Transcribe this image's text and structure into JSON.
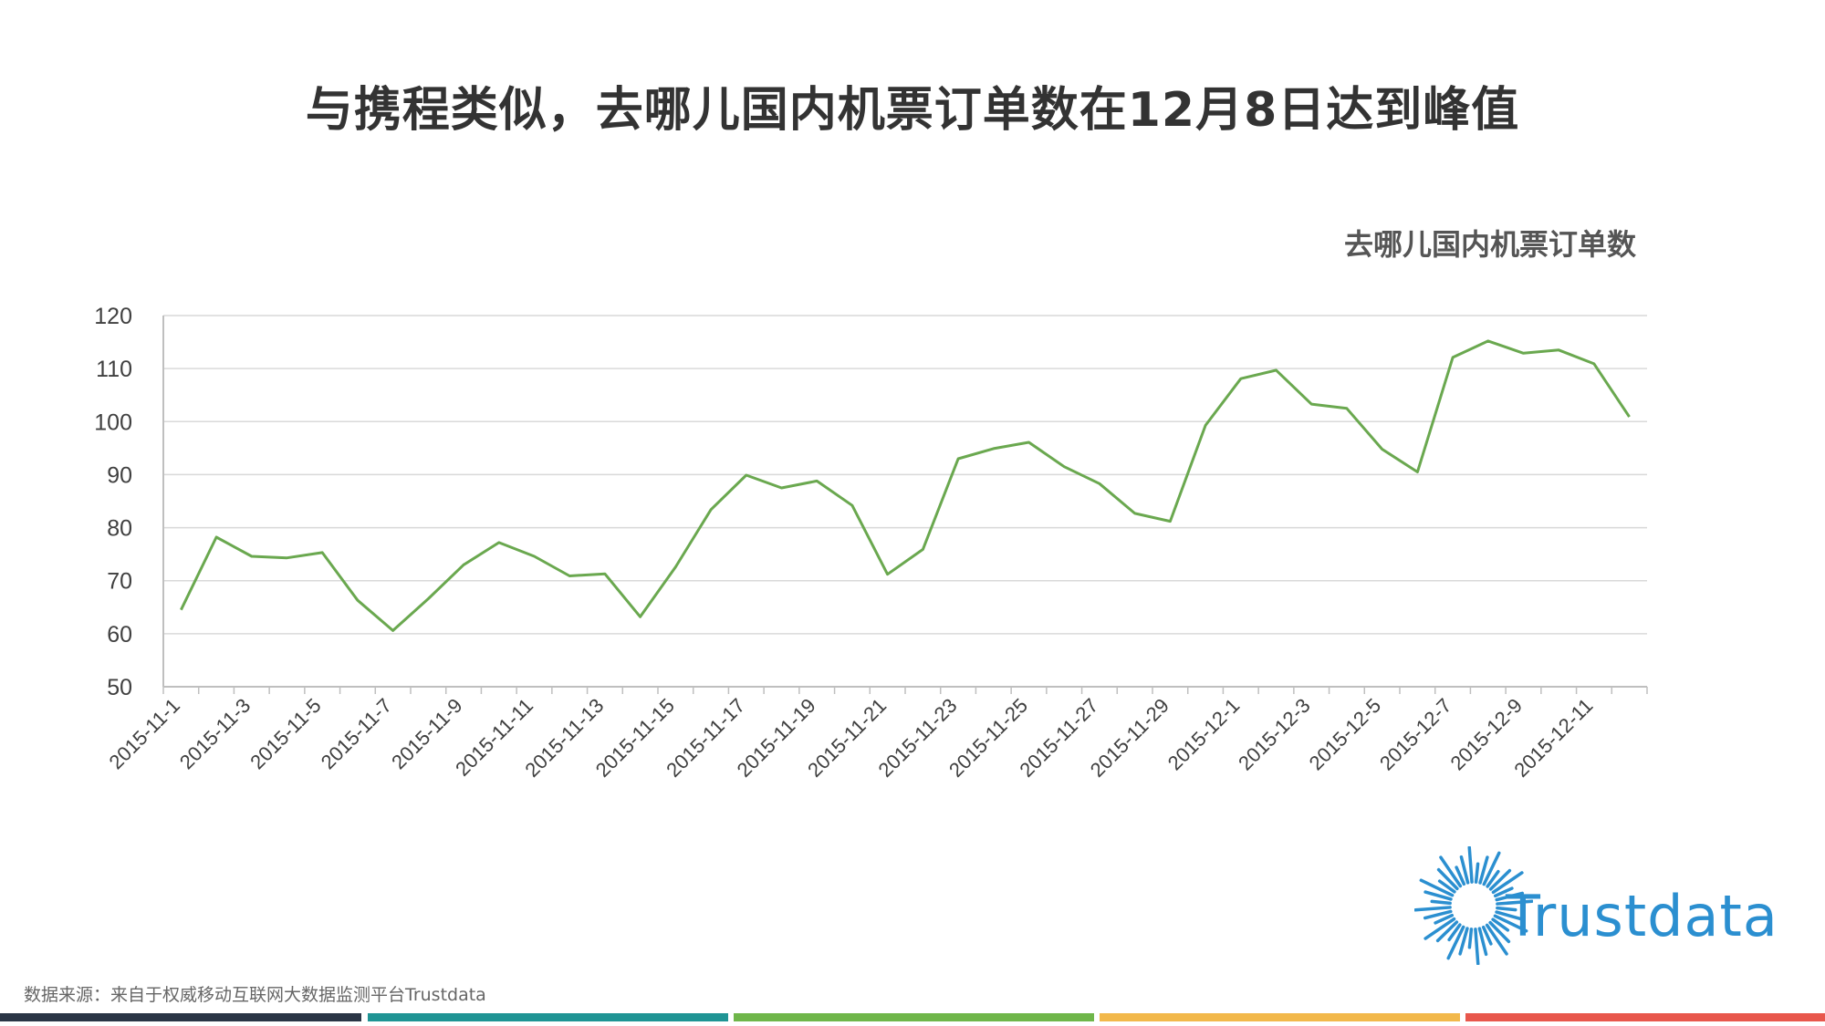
{
  "title": "与携程类似，去哪儿国内机票订单数在12月8日达到峰值",
  "source": "数据来源：来自于权威移动互联网大数据监测平台Trustdata",
  "logo_text": "Trustdata",
  "colors": {
    "line": "#6aa84f",
    "grid": "#d9d9d9",
    "axis": "#bfbfbf",
    "logo": "#2b8fd0",
    "bar1": "#2a3545",
    "bar2": "#1f9494",
    "bar3": "#6fb64a",
    "bar4": "#f2b84b",
    "bar5": "#e8574c"
  },
  "chart_data": {
    "type": "line",
    "title": "",
    "legend": "top-right",
    "ylim": [
      50,
      120
    ],
    "yticks": [
      120,
      110,
      100,
      90,
      80,
      70,
      60,
      50
    ],
    "grid": true,
    "series": [
      {
        "name": "去哪儿国内机票订单数",
        "x": [
          "2015-11-1",
          "2015-11-2",
          "2015-11-3",
          "2015-11-4",
          "2015-11-5",
          "2015-11-6",
          "2015-11-7",
          "2015-11-8",
          "2015-11-9",
          "2015-11-10",
          "2015-11-11",
          "2015-11-12",
          "2015-11-13",
          "2015-11-14",
          "2015-11-15",
          "2015-11-16",
          "2015-11-17",
          "2015-11-18",
          "2015-11-19",
          "2015-11-20",
          "2015-11-21",
          "2015-11-22",
          "2015-11-23",
          "2015-11-24",
          "2015-11-25",
          "2015-11-26",
          "2015-11-27",
          "2015-11-28",
          "2015-11-29",
          "2015-11-30",
          "2015-12-1",
          "2015-12-2",
          "2015-12-3",
          "2015-12-4",
          "2015-12-5",
          "2015-12-6",
          "2015-12-7",
          "2015-12-8",
          "2015-12-9",
          "2015-12-10",
          "2015-12-11",
          "2015-12-12"
        ],
        "values": [
          64.5,
          78.2,
          74.6,
          74.3,
          75.3,
          66.3,
          60.6,
          66.6,
          73.0,
          77.2,
          74.6,
          70.9,
          71.3,
          63.2,
          72.6,
          83.4,
          89.9,
          87.5,
          88.8,
          84.2,
          71.2,
          75.9,
          93.0,
          94.9,
          96.1,
          91.5,
          88.3,
          82.7,
          81.2,
          99.3,
          108.1,
          109.7,
          103.3,
          102.5,
          94.8,
          90.5,
          112.1,
          115.2,
          112.9,
          113.5,
          110.9,
          100.9
        ]
      }
    ],
    "xtick_labels": [
      "2015-11-1",
      "2015-11-3",
      "2015-11-5",
      "2015-11-7",
      "2015-11-9",
      "2015-11-11",
      "2015-11-13",
      "2015-11-15",
      "2015-11-17",
      "2015-11-19",
      "2015-11-21",
      "2015-11-23",
      "2015-11-25",
      "2015-11-27",
      "2015-11-29",
      "2015-12-1",
      "2015-12-3",
      "2015-12-5",
      "2015-12-7",
      "2015-12-9",
      "2015-12-11"
    ]
  }
}
